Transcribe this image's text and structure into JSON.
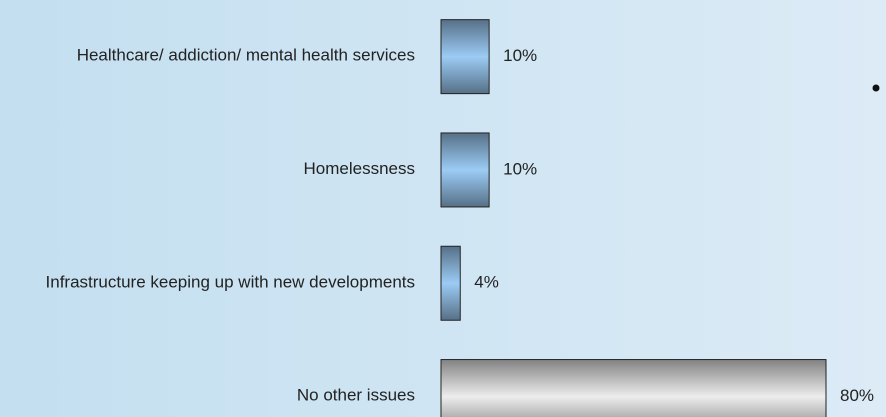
{
  "chart_data": {
    "type": "bar",
    "orientation": "horizontal",
    "categories": [
      "Healthcare/ addiction/ mental health services",
      "Homelessness",
      "Infrastructure keeping up with new developments",
      "No other issues"
    ],
    "values": [
      10,
      10,
      4,
      80
    ],
    "value_labels": [
      "10%",
      "10%",
      "4%",
      "80%"
    ],
    "colors": [
      "#9ccbf5",
      "#9ccbf5",
      "#9ccbf5",
      "#ededed"
    ],
    "xlim": [
      0,
      80
    ]
  }
}
